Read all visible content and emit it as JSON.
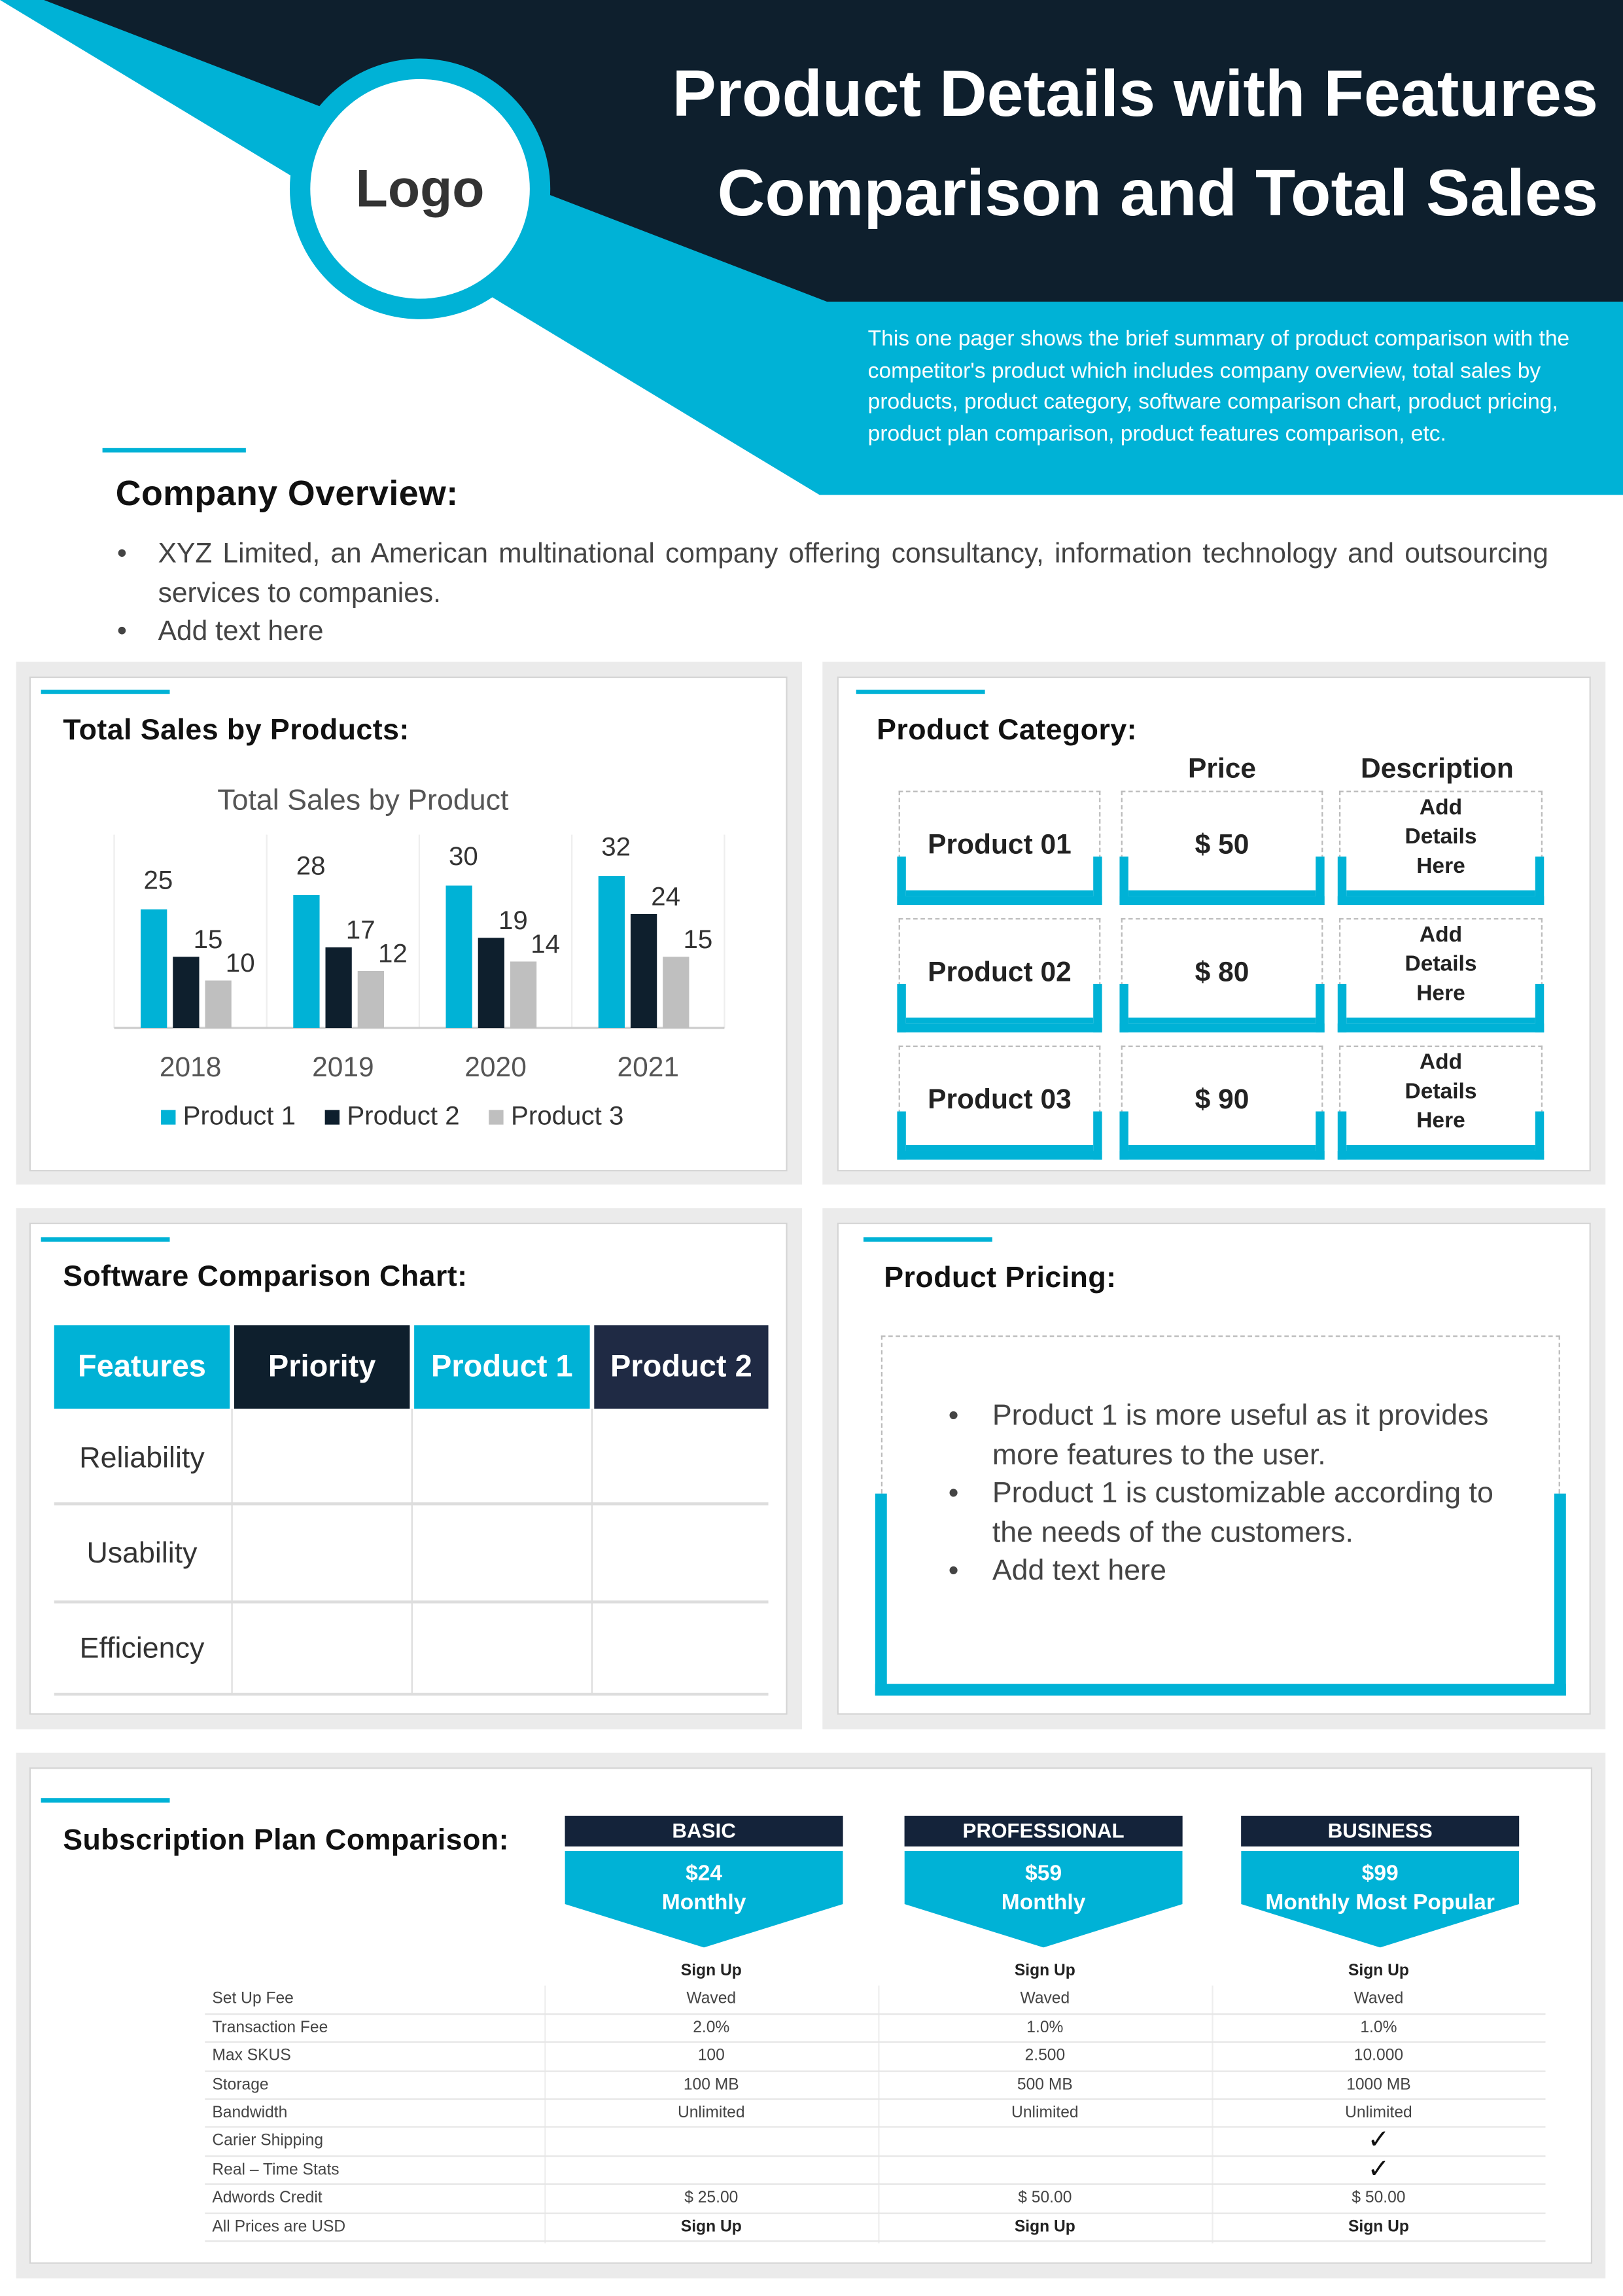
{
  "header": {
    "logo": "Logo",
    "title_line1": "Product Details with Features",
    "title_line2": "Comparison and Total Sales",
    "description": "This one pager shows the brief summary of product comparison with the competitor's product which includes company overview, total sales by products, product category, software comparison chart, product pricing, product plan comparison, product features comparison, etc."
  },
  "colors": {
    "accent": "#00b2d6",
    "navy": "#0e1f2d",
    "navy2": "#1f2a44",
    "gray": "#bfbfbf"
  },
  "company": {
    "heading": "Company Overview:",
    "bullets": [
      "XYZ Limited, an American multinational company offering consultancy, information technology and outsourcing services to companies.",
      "Add text here"
    ]
  },
  "sales": {
    "heading": "Total Sales by Products:"
  },
  "chart_data": {
    "type": "bar",
    "title": "Total Sales by Product",
    "categories": [
      "2018",
      "2019",
      "2020",
      "2021"
    ],
    "series": [
      {
        "name": "Product 1",
        "color": "#00b2d6",
        "values": [
          25,
          28,
          30,
          32
        ]
      },
      {
        "name": "Product 2",
        "color": "#0e1f2d",
        "values": [
          15,
          17,
          19,
          24
        ]
      },
      {
        "name": "Product 3",
        "color": "#bfbfbf",
        "values": [
          10,
          12,
          14,
          15
        ]
      }
    ],
    "ylim": [
      0,
      35
    ],
    "legend": "bottom",
    "data_labels": true,
    "grid": "vertical"
  },
  "category": {
    "heading": "Product Category:",
    "col_price": "Price",
    "col_desc": "Description",
    "rows": [
      {
        "name": "Product 01",
        "price": "$ 50",
        "desc": "Add Details Here"
      },
      {
        "name": "Product 02",
        "price": "$ 80",
        "desc": "Add Details Here"
      },
      {
        "name": "Product 03",
        "price": "$ 90",
        "desc": "Add Details Here"
      }
    ]
  },
  "software": {
    "heading": "Software Comparison Chart:",
    "headers": [
      "Features",
      "Priority",
      "Product 1",
      "Product 2"
    ],
    "rows": [
      "Reliability",
      "Usability",
      "Efficiency"
    ]
  },
  "pricing": {
    "heading": "Product Pricing:",
    "bullets": [
      "Product 1 is more useful as it provides more features to the user.",
      "Product 1 is customizable according to the needs of the customers.",
      "Add text here"
    ]
  },
  "subscription": {
    "heading": "Subscription Plan Comparison:",
    "plans": [
      {
        "name": "BASIC",
        "price": "$24",
        "period": "Monthly"
      },
      {
        "name": "PROFESSIONAL",
        "price": "$59",
        "period": "Monthly"
      },
      {
        "name": "BUSINESS",
        "price": "$99",
        "period": "Monthly Most Popular"
      }
    ],
    "rows": [
      {
        "label": "",
        "values": [
          "Sign Up",
          "Sign Up",
          "Sign Up"
        ],
        "bold": true
      },
      {
        "label": "Set Up Fee",
        "values": [
          "Waved",
          "Waved",
          "Waved"
        ]
      },
      {
        "label": "Transaction Fee",
        "values": [
          "2.0%",
          "1.0%",
          "1.0%"
        ]
      },
      {
        "label": "Max SKUS",
        "values": [
          "100",
          "2.500",
          "10.000"
        ]
      },
      {
        "label": "Storage",
        "values": [
          "100 MB",
          "500 MB",
          "1000 MB"
        ]
      },
      {
        "label": "Bandwidth",
        "values": [
          "Unlimited",
          "Unlimited",
          "Unlimited"
        ]
      },
      {
        "label": "Carier Shipping",
        "values": [
          "",
          "",
          "✓"
        ]
      },
      {
        "label": "Real – Time Stats",
        "values": [
          "",
          "",
          "✓"
        ]
      },
      {
        "label": "Adwords Credit",
        "values": [
          "$ 25.00",
          "$ 50.00",
          "$ 50.00"
        ]
      },
      {
        "label": "All Prices are USD",
        "values": [
          "Sign Up",
          "Sign Up",
          "Sign Up"
        ],
        "bold": true
      }
    ]
  }
}
